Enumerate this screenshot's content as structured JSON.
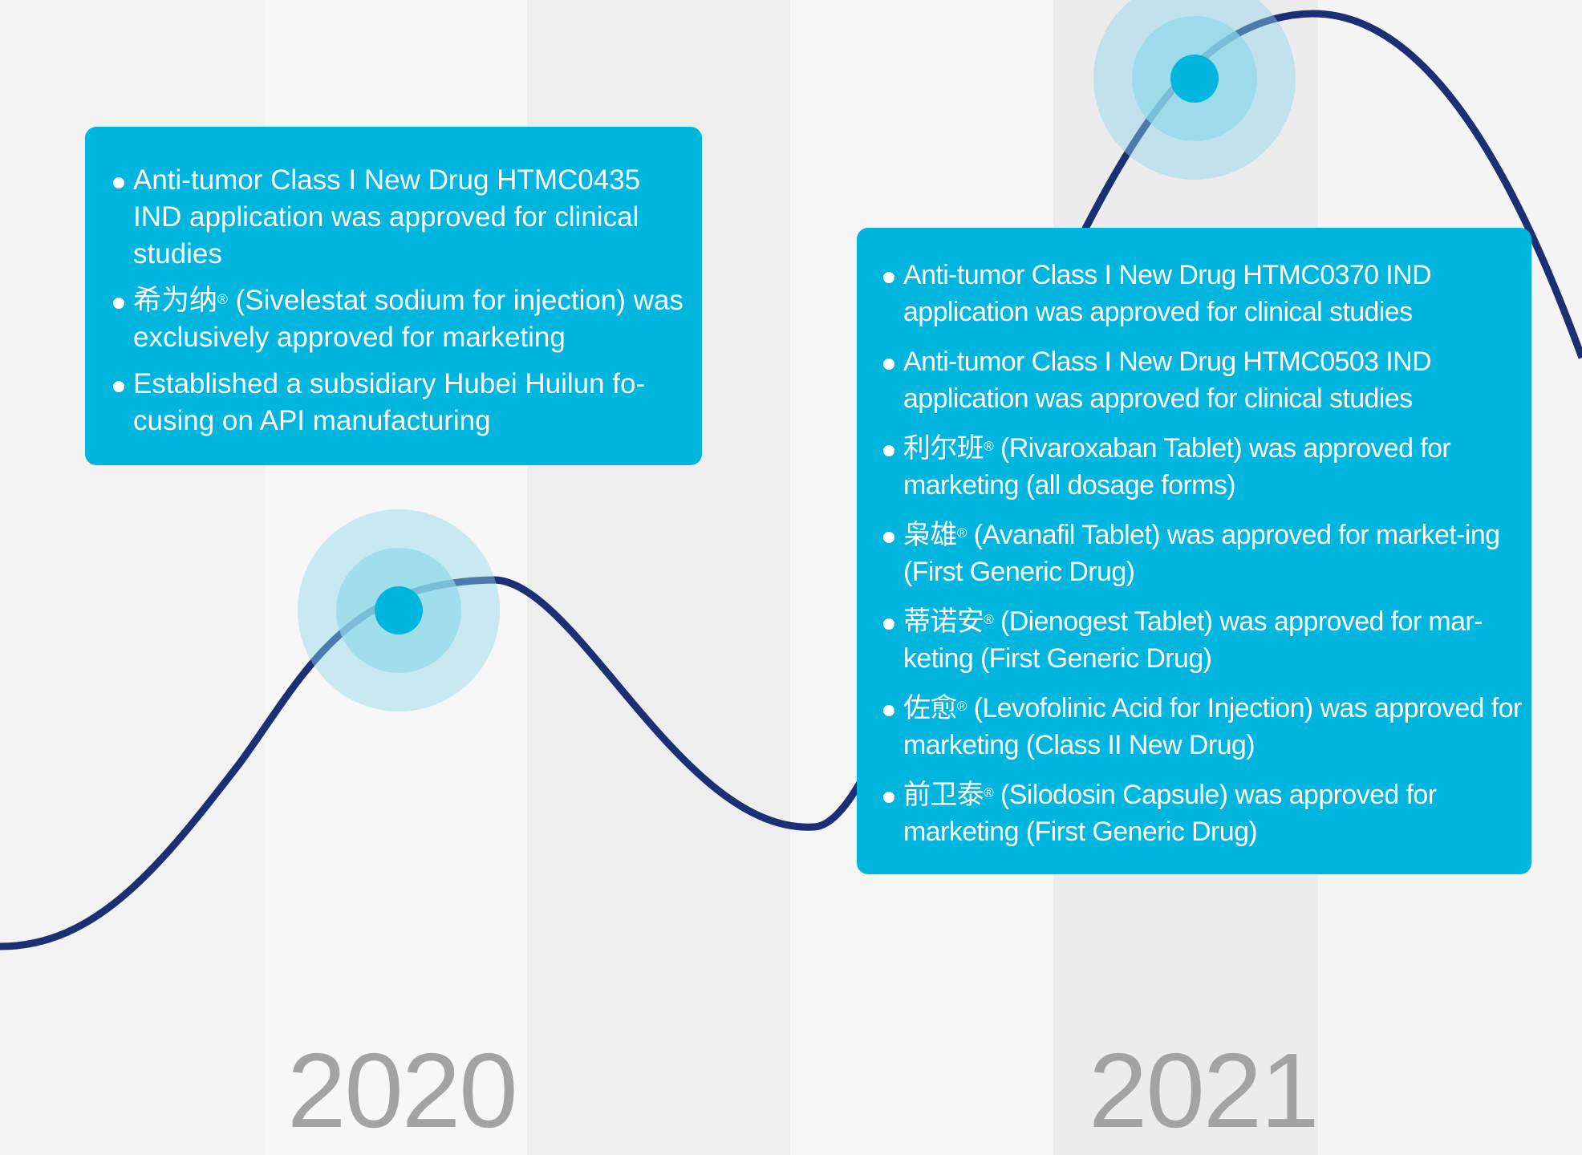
{
  "colors": {
    "box": "#00b6df",
    "curve": "#1a2f74",
    "node": "#00b6df",
    "year": "#a3a3a3"
  },
  "milestones": [
    {
      "year": "2020",
      "items": [
        {
          "text": "Anti-tumor Class I New Drug HTMC0435 IND application was approved for clinical studies"
        },
        {
          "brand": "希为纳",
          "mark": "®",
          "text": " (Sivelestat sodium for injection) was exclusively approved for marketing"
        },
        {
          "text": "Established a subsidiary Hubei Huilun fo-cusing on API manufacturing"
        }
      ]
    },
    {
      "year": "2021",
      "items": [
        {
          "text": "Anti-tumor Class I New Drug HTMC0370 IND application was approved for clinical studies"
        },
        {
          "text": "Anti-tumor Class I New Drug HTMC0503 IND application was approved for clinical studies"
        },
        {
          "brand": "利尔班",
          "mark": "®",
          "text": " (Rivaroxaban Tablet) was approved for marketing (all dosage forms)"
        },
        {
          "brand": "枭雄",
          "mark": "®",
          "text": " (Avanafil Tablet) was approved for market-ing (First Generic Drug)"
        },
        {
          "brand": "蒂诺安",
          "mark": "®",
          "text": " (Dienogest Tablet) was approved for mar-keting (First Generic Drug)"
        },
        {
          "brand": "佐愈",
          "mark": "®",
          "text": " (Levofolinic Acid for Injection) was approved for marketing (Class II New Drug)"
        },
        {
          "brand": "前卫泰",
          "mark": "®",
          "text": " (Silodosin Capsule) was approved for marketing (First Generic Drug)"
        }
      ]
    }
  ]
}
